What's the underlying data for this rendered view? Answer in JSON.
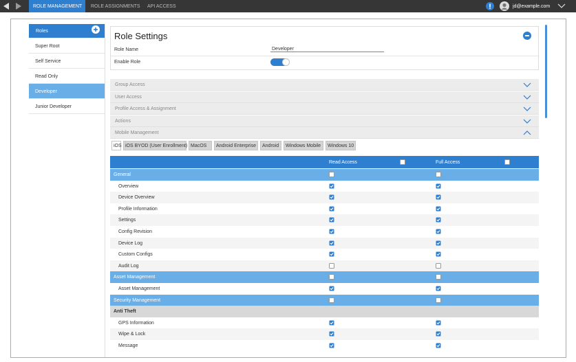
{
  "nav": {
    "tabs": [
      "ROLE MANAGEMENT",
      "ROLE ASSIGNMENTS",
      "API ACCESS"
    ],
    "active": 0,
    "user": "jd@example.com"
  },
  "sidebar": {
    "title": "Roles",
    "items": [
      "Super Root",
      "Self Service",
      "Read Only",
      "Developer",
      "Junior Developer"
    ],
    "active": 3
  },
  "role_settings": {
    "title": "Role Settings",
    "role_name_label": "Role Name",
    "role_name": "Developer",
    "enable_label": "Enable Role",
    "enabled": true
  },
  "sections": [
    "Group Access",
    "User Access",
    "Profile Access & Assignment",
    "Actions",
    "Mobile Management"
  ],
  "os_tabs": {
    "tabs": [
      "iOS",
      "iOS BYOD (User Enrollment)",
      "MacOS",
      "Android Enterprise",
      "Android",
      "Windows Mobile",
      "Windows 10"
    ],
    "active": 0
  },
  "table": {
    "columns": [
      {
        "label": "Read Access",
        "checked": false
      },
      {
        "label": "Full Access",
        "checked": false
      }
    ],
    "rows": [
      {
        "label": "General",
        "kind": "group",
        "read": false,
        "full": false
      },
      {
        "label": "Overview",
        "kind": "item",
        "read": true,
        "full": true
      },
      {
        "label": "Device Overview",
        "kind": "item",
        "read": true,
        "full": true
      },
      {
        "label": "Profile Information",
        "kind": "item",
        "read": true,
        "full": true
      },
      {
        "label": "Settings",
        "kind": "item",
        "read": true,
        "full": true
      },
      {
        "label": "Config Revision",
        "kind": "item",
        "read": true,
        "full": true
      },
      {
        "label": "Device Log",
        "kind": "item",
        "read": true,
        "full": true
      },
      {
        "label": "Custom Configs",
        "kind": "item",
        "read": true,
        "full": true
      },
      {
        "label": "Audit Log",
        "kind": "item",
        "read": false,
        "full": false
      },
      {
        "label": "Asset Management",
        "kind": "group",
        "read": false,
        "full": false
      },
      {
        "label": "Asset Management",
        "kind": "item",
        "read": true,
        "full": true
      },
      {
        "label": "Security Management",
        "kind": "group",
        "read": false,
        "full": false
      },
      {
        "label": "Anti Theft",
        "kind": "subgroup"
      },
      {
        "label": "GPS Information",
        "kind": "item",
        "read": true,
        "full": true
      },
      {
        "label": "Wipe & Lock",
        "kind": "item",
        "read": true,
        "full": true
      },
      {
        "label": "Message",
        "kind": "item",
        "read": true,
        "full": true
      }
    ]
  }
}
